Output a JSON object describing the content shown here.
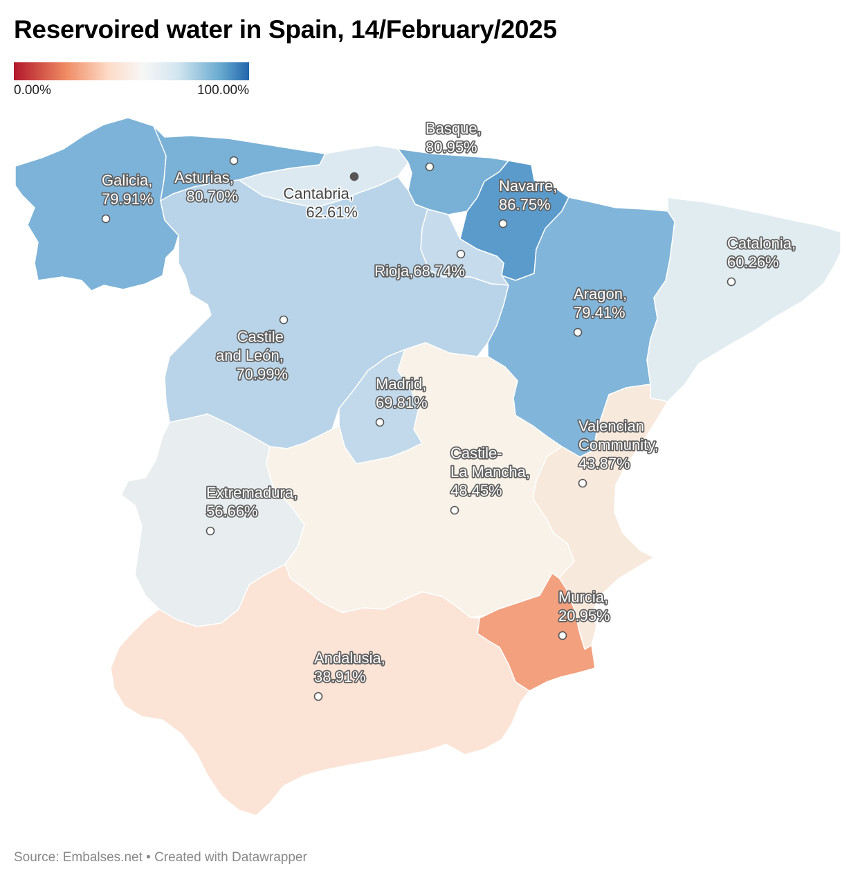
{
  "title": "Reservoired water in Spain, 14/February/2025",
  "legend": {
    "min_label": "0.00%",
    "max_label": "100.00%",
    "colors": [
      "#b2182b",
      "#ef8a62",
      "#fddbc7",
      "#f7f7f7",
      "#d1e5f0",
      "#67a9cf",
      "#2166ac"
    ]
  },
  "regions": [
    {
      "id": "galicia",
      "name": "Galicia,",
      "value": "79.91%",
      "pct": 79.91,
      "color": "#7db3d8"
    },
    {
      "id": "asturias",
      "name": "Asturias,",
      "value": "80.70%",
      "pct": 80.7,
      "color": "#7ab1d7"
    },
    {
      "id": "cantabria",
      "name": "Cantabria,",
      "value": "62.61%",
      "pct": 62.61,
      "color": "#dce9f1"
    },
    {
      "id": "basque",
      "name": "Basque,",
      "value": "80.95%",
      "pct": 80.95,
      "color": "#79b0d6"
    },
    {
      "id": "navarre",
      "name": "Navarre,",
      "value": "86.75%",
      "pct": 86.75,
      "color": "#5b9bcb"
    },
    {
      "id": "rioja",
      "name": "Rioja,",
      "value": "68.74%",
      "pct": 68.74,
      "color": "#c6dcec"
    },
    {
      "id": "castile_leon",
      "name_lines": [
        "Castile",
        "and León,"
      ],
      "value": "70.99%",
      "pct": 70.99,
      "color": "#b9d4e8"
    },
    {
      "id": "aragon",
      "name": "Aragon,",
      "value": "79.41%",
      "pct": 79.41,
      "color": "#81b5da"
    },
    {
      "id": "catalonia",
      "name": "Catalonia,",
      "value": "60.26%",
      "pct": 60.26,
      "color": "#e1ecf1"
    },
    {
      "id": "madrid",
      "name": "Madrid,",
      "value": "69.81%",
      "pct": 69.81,
      "color": "#c1d9eb"
    },
    {
      "id": "extremadura",
      "name": "Extremadura,",
      "value": "56.66%",
      "pct": 56.66,
      "color": "#e8edef"
    },
    {
      "id": "castile_la_mancha",
      "name_lines": [
        "Castile-",
        "La Mancha,"
      ],
      "value": "48.45%",
      "pct": 48.45,
      "color": "#f8f2e8"
    },
    {
      "id": "valencian",
      "name_lines": [
        "Valencian",
        "Community,"
      ],
      "value": "43.87%",
      "pct": 43.87,
      "color": "#f8e9dd"
    },
    {
      "id": "murcia",
      "name": "Murcia,",
      "value": "20.95%",
      "pct": 20.95,
      "color": "#f3a07e"
    },
    {
      "id": "andalusia",
      "name": "Andalusia,",
      "value": "38.91%",
      "pct": 38.91,
      "color": "#fbe3d6"
    }
  ],
  "source": "Source: Embalses.net • Created with Datawrapper"
}
